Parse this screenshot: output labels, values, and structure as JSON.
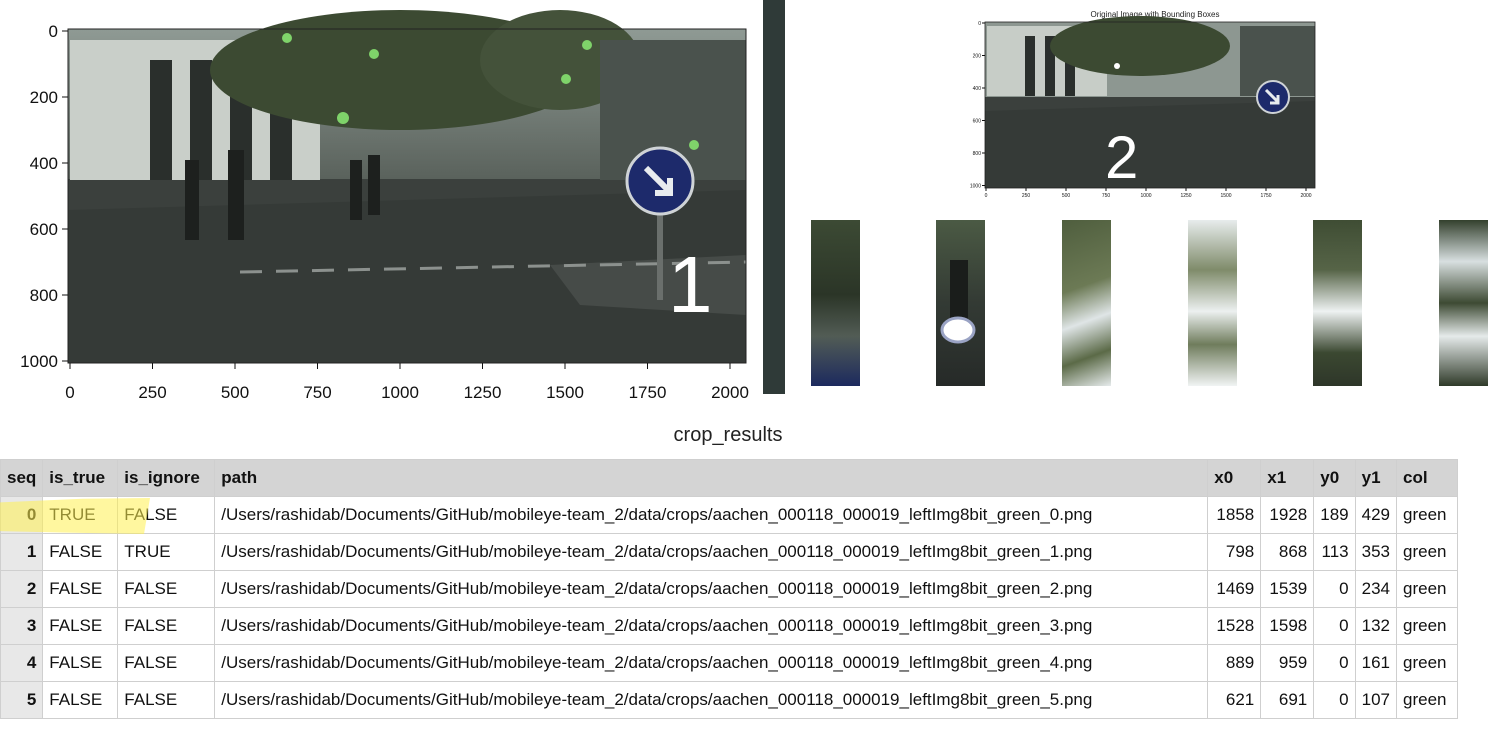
{
  "figure1": {
    "label": "1",
    "x_ticks": [
      "0",
      "250",
      "500",
      "750",
      "1000",
      "1250",
      "1500",
      "1750",
      "2000"
    ],
    "y_ticks": [
      "0",
      "200",
      "400",
      "600",
      "800",
      "1000"
    ]
  },
  "figure2": {
    "label": "2",
    "title": "Original Image with Bounding Boxes",
    "x_ticks": [
      "0",
      "250",
      "500",
      "750",
      "1000",
      "1250",
      "1500",
      "1750",
      "2000"
    ],
    "y_ticks": [
      "0",
      "200",
      "400",
      "600",
      "800",
      "1000"
    ]
  },
  "table": {
    "title": "crop_results",
    "columns": [
      "seq",
      "is_true",
      "is_ignore",
      "path",
      "x0",
      "x1",
      "y0",
      "y1",
      "col"
    ],
    "rows": [
      {
        "seq": "0",
        "is_true": "TRUE",
        "is_ignore": "FALSE",
        "path": "/Users/rashidab/Documents/GitHub/mobileye-team_2/data/crops/aachen_000118_000019_leftImg8bit_green_0.png",
        "x0": "1858",
        "x1": "1928",
        "y0": "189",
        "y1": "429",
        "col": "green"
      },
      {
        "seq": "1",
        "is_true": "FALSE",
        "is_ignore": "TRUE",
        "path": "/Users/rashidab/Documents/GitHub/mobileye-team_2/data/crops/aachen_000118_000019_leftImg8bit_green_1.png",
        "x0": "798",
        "x1": "868",
        "y0": "113",
        "y1": "353",
        "col": "green"
      },
      {
        "seq": "2",
        "is_true": "FALSE",
        "is_ignore": "FALSE",
        "path": "/Users/rashidab/Documents/GitHub/mobileye-team_2/data/crops/aachen_000118_000019_leftImg8bit_green_2.png",
        "x0": "1469",
        "x1": "1539",
        "y0": "0",
        "y1": "234",
        "col": "green"
      },
      {
        "seq": "3",
        "is_true": "FALSE",
        "is_ignore": "FALSE",
        "path": "/Users/rashidab/Documents/GitHub/mobileye-team_2/data/crops/aachen_000118_000019_leftImg8bit_green_3.png",
        "x0": "1528",
        "x1": "1598",
        "y0": "0",
        "y1": "132",
        "col": "green"
      },
      {
        "seq": "4",
        "is_true": "FALSE",
        "is_ignore": "FALSE",
        "path": "/Users/rashidab/Documents/GitHub/mobileye-team_2/data/crops/aachen_000118_000019_leftImg8bit_green_4.png",
        "x0": "889",
        "x1": "959",
        "y0": "0",
        "y1": "161",
        "col": "green"
      },
      {
        "seq": "5",
        "is_true": "FALSE",
        "is_ignore": "FALSE",
        "path": "/Users/rashidab/Documents/GitHub/mobileye-team_2/data/crops/aachen_000118_000019_leftImg8bit_green_5.png",
        "x0": "621",
        "x1": "691",
        "y0": "0",
        "y1": "107",
        "col": "green"
      }
    ]
  },
  "colors": {
    "divider": "#2f3a38",
    "highlight": "#fff050",
    "header_bg": "#d4d4d4"
  }
}
